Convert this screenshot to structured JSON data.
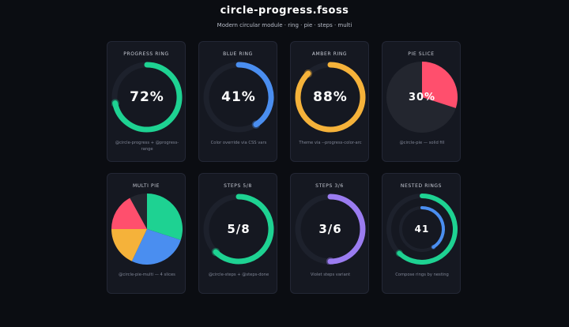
{
  "header": {
    "title": "circle-progress.fsoss",
    "subtitle": "Modern circular module · ring · pie · steps · multi"
  },
  "colors": {
    "green": "#1ed292",
    "blue": "#4a8ef0",
    "amber": "#f5b23a",
    "pink": "#ff4f6d",
    "violet": "#9a7cf0",
    "track": "#1d212c",
    "pie_bg": "#23262f"
  },
  "cards": [
    {
      "label": "PROGRESS RING",
      "value_text": "72%",
      "caption": "@circle-progress + @progress-range",
      "kind": "ring",
      "progress": 0.72,
      "color": "#1ed292"
    },
    {
      "label": "BLUE RING",
      "value_text": "41%",
      "caption": "Color override via CSS vars",
      "kind": "ring",
      "progress": 0.41,
      "color": "#4a8ef0"
    },
    {
      "label": "AMBER RING",
      "value_text": "88%",
      "caption": "Theme via --progress-color-arc",
      "kind": "ring",
      "progress": 0.88,
      "color": "#f5b23a"
    },
    {
      "label": "PIE SLICE",
      "value_text": "30%",
      "caption": "@circle-pie — solid fill",
      "kind": "pie",
      "progress": 0.3,
      "color": "#ff4f6d"
    },
    {
      "label": "MULTI PIE",
      "value_text": "",
      "caption": "@circle-pie-multi — 4 slices",
      "kind": "multi",
      "slices": [
        {
          "value": 0.3,
          "color": "#1ed292"
        },
        {
          "value": 0.27,
          "color": "#4a8ef0"
        },
        {
          "value": 0.18,
          "color": "#f5b23a"
        },
        {
          "value": 0.17,
          "color": "#ff4f6d"
        }
      ]
    },
    {
      "label": "STEPS 5/8",
      "value_text": "5/8",
      "caption": "@circle-steps + @steps-done",
      "kind": "ring",
      "progress": 0.625,
      "color": "#1ed292"
    },
    {
      "label": "STEPS 3/6",
      "value_text": "3/6",
      "caption": "Violet steps variant",
      "kind": "ring",
      "progress": 0.5,
      "color": "#9a7cf0"
    },
    {
      "label": "NESTED RINGS",
      "value_text": "41",
      "caption": "Compose rings by nesting",
      "kind": "nested",
      "progress": 0.62,
      "inner_progress": 0.41,
      "color": "#1ed292",
      "inner_color": "#4a8ef0"
    }
  ]
}
